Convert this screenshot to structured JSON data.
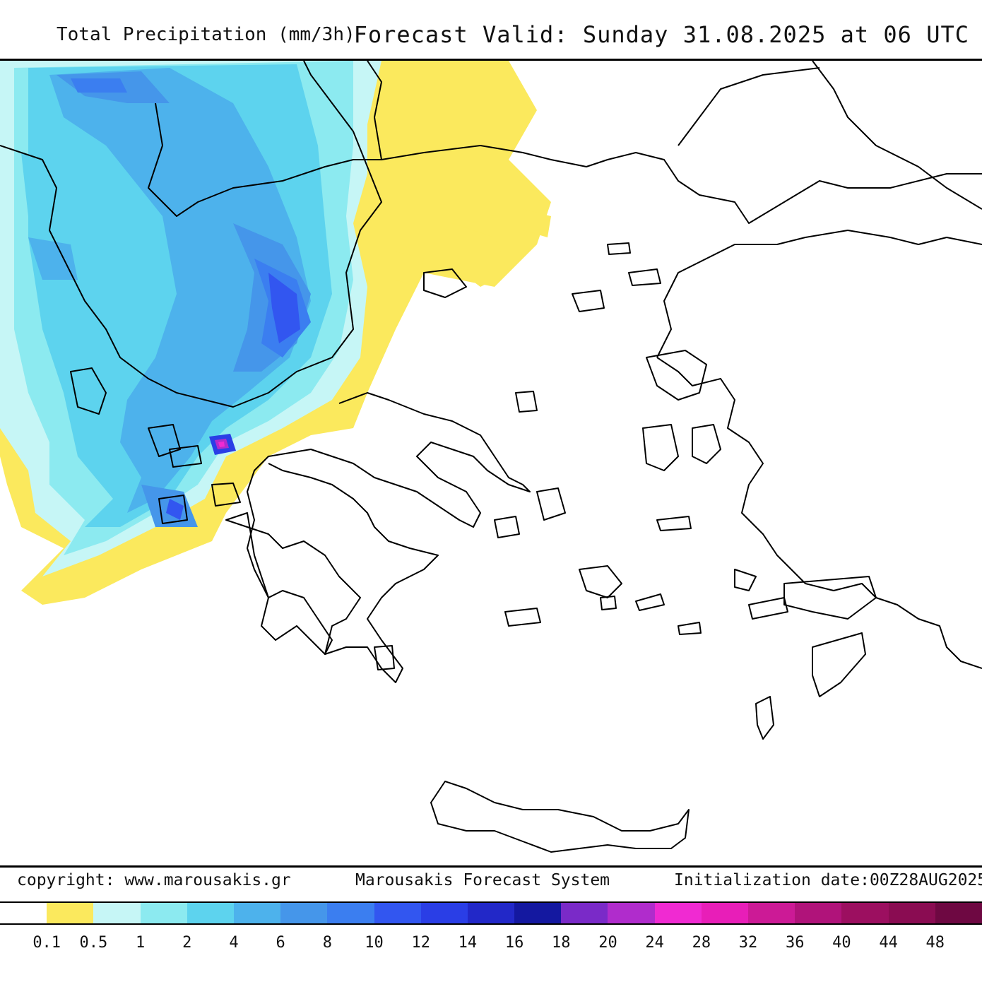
{
  "header": {
    "title": "Total Precipitation (mm/3h)",
    "valid": "Forecast Valid:  Sunday 31.08.2025 at 06 UTC"
  },
  "footer": {
    "copyright": "copyright: www.marousakis.gr",
    "system": "Marousakis Forecast System",
    "init": "Initialization date:00Z28AUG2025"
  },
  "legend": {
    "colors": [
      "#ffffff",
      "#fbe95d",
      "#c6f6f6",
      "#8ceaf0",
      "#5dd3ee",
      "#4db2ec",
      "#4596ea",
      "#3b7ef0",
      "#3256f0",
      "#2a3ee6",
      "#2228c8",
      "#1418a0",
      "#7a2ac8",
      "#b02ccc",
      "#f02ad2",
      "#e81eb8",
      "#cc1a96",
      "#b0137a",
      "#9c0f60",
      "#8a0c52",
      "#6e0842"
    ],
    "labels": [
      "0.1",
      "0.5",
      "1",
      "2",
      "4",
      "6",
      "8",
      "10",
      "12",
      "14",
      "16",
      "18",
      "20",
      "24",
      "28",
      "32",
      "36",
      "40",
      "44",
      "48"
    ]
  },
  "map": {
    "coastline_color": "#000000",
    "precip_levels": [
      "0.5",
      "1",
      "2",
      "4",
      "8",
      "12",
      "16",
      "24"
    ]
  }
}
